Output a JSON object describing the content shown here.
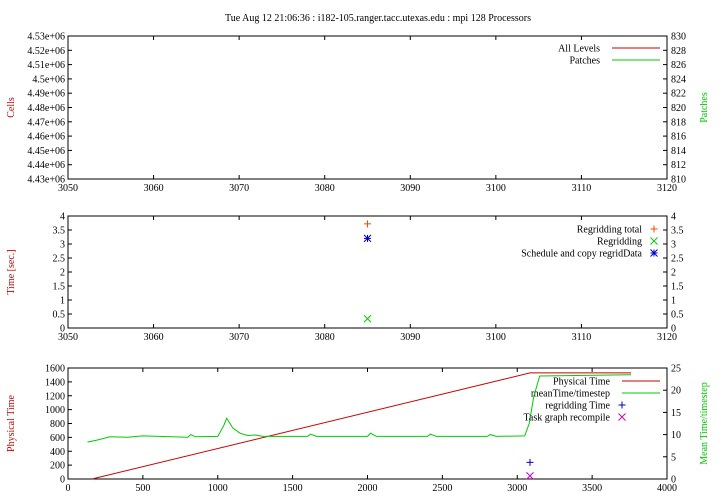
{
  "title": "Tue Aug 12 21:06:36 : i182-105.ranger.tacc.utexas.edu : mpi 128 Processors",
  "colors": {
    "red": "#cc0000",
    "green": "#00cc00",
    "blue": "#0000cc",
    "magenta": "#cc00cc",
    "orange": "#ff4400",
    "light_green": "#44dd44"
  },
  "chart_data": [
    {
      "type": "line",
      "ylabel": "Cells",
      "y2label": "Patches",
      "xlim": [
        3050,
        3120
      ],
      "ylim": [
        4430000,
        4530000
      ],
      "y2lim": [
        810,
        830
      ],
      "xticks": [
        "3050",
        "3060",
        "3070",
        "3080",
        "3090",
        "3100",
        "3110",
        "3120"
      ],
      "yticks": [
        "4.43e+06",
        "4.44e+06",
        "4.45e+06",
        "4.46e+06",
        "4.47e+06",
        "4.48e+06",
        "4.49e+06",
        "4.5e+06",
        "4.51e+06",
        "4.52e+06",
        "4.53e+06"
      ],
      "y2ticks": [
        "810",
        "812",
        "814",
        "816",
        "818",
        "820",
        "822",
        "824",
        "826",
        "828",
        "830"
      ],
      "legend_position": "top-right",
      "series": [
        {
          "name": "All Levels",
          "color": "#cc0000",
          "x": [],
          "y": []
        },
        {
          "name": "Patches",
          "color": "#00cc00",
          "x": [],
          "y": []
        }
      ]
    },
    {
      "type": "scatter",
      "ylabel": "Time [sec.]",
      "xlim": [
        3050,
        3120
      ],
      "ylim": [
        0,
        4
      ],
      "xticks": [
        "3050",
        "3060",
        "3070",
        "3080",
        "3090",
        "3100",
        "3110",
        "3120"
      ],
      "yticks": [
        "0",
        "0.5",
        "1",
        "1.5",
        "2",
        "2.5",
        "3",
        "3.5",
        "4"
      ],
      "y2ticks": [
        "0",
        "0.5",
        "1",
        "1.5",
        "2",
        "2.5",
        "3",
        "3.5",
        "4"
      ],
      "legend_position": "top-right",
      "series": [
        {
          "name": "Regridding total",
          "marker": "+",
          "color": "#ff4400",
          "x": [
            3085
          ],
          "y": [
            3.72
          ]
        },
        {
          "name": "Regridding",
          "marker": "x",
          "color": "#00cc00",
          "x": [
            3085
          ],
          "y": [
            0.33
          ]
        },
        {
          "name": "Schedule and copy regridData",
          "marker": "*",
          "color": "#0000cc",
          "x": [
            3085
          ],
          "y": [
            3.2
          ]
        }
      ]
    },
    {
      "type": "line",
      "ylabel": "Physical Time",
      "y2label": "Mean Time/timestep",
      "xlim": [
        0,
        4000
      ],
      "ylim": [
        0,
        1600
      ],
      "y2lim": [
        0,
        25
      ],
      "xticks": [
        "0",
        "500",
        "1000",
        "1500",
        "2000",
        "2500",
        "3000",
        "3500",
        "4000"
      ],
      "yticks": [
        "0",
        "200",
        "400",
        "600",
        "800",
        "1000",
        "1200",
        "1400",
        "1600"
      ],
      "y2ticks": [
        "0",
        "5",
        "10",
        "15",
        "20",
        "25"
      ],
      "legend_position": "top-right",
      "series": [
        {
          "name": "Physical Time",
          "color": "#cc0000",
          "axis": "y",
          "x": [
            160,
            3085,
            3760
          ],
          "y": [
            0,
            1530,
            1530
          ]
        },
        {
          "name": "meanTime/timestep",
          "color": "#00cc00",
          "axis": "y2",
          "x": [
            130,
            200,
            280,
            400,
            460,
            500,
            800,
            820,
            850,
            1000,
            1040,
            1060,
            1100,
            1150,
            1200,
            1250,
            1300,
            1600,
            1620,
            1660,
            2000,
            2020,
            2060,
            2400,
            2420,
            2460,
            2800,
            2820,
            2860,
            3050,
            3080,
            3110,
            3150,
            3760
          ],
          "y": [
            8.3,
            8.8,
            9.5,
            9.4,
            9.6,
            9.7,
            9.4,
            10.0,
            9.5,
            9.6,
            12.0,
            13.7,
            11.5,
            10.3,
            9.8,
            9.9,
            9.6,
            9.6,
            10.1,
            9.6,
            9.6,
            10.3,
            9.6,
            9.6,
            10.1,
            9.6,
            9.6,
            10.0,
            9.6,
            9.7,
            12.5,
            18.5,
            23.2,
            23.5
          ]
        },
        {
          "name": "regridding Time",
          "marker": "+",
          "color": "#0000cc",
          "axis": "y",
          "x": [
            3085
          ],
          "y": [
            240
          ]
        },
        {
          "name": "Task graph recompile",
          "marker": "x",
          "color": "#cc00cc",
          "axis": "y",
          "x": [
            3085
          ],
          "y": [
            45
          ]
        }
      ]
    }
  ]
}
